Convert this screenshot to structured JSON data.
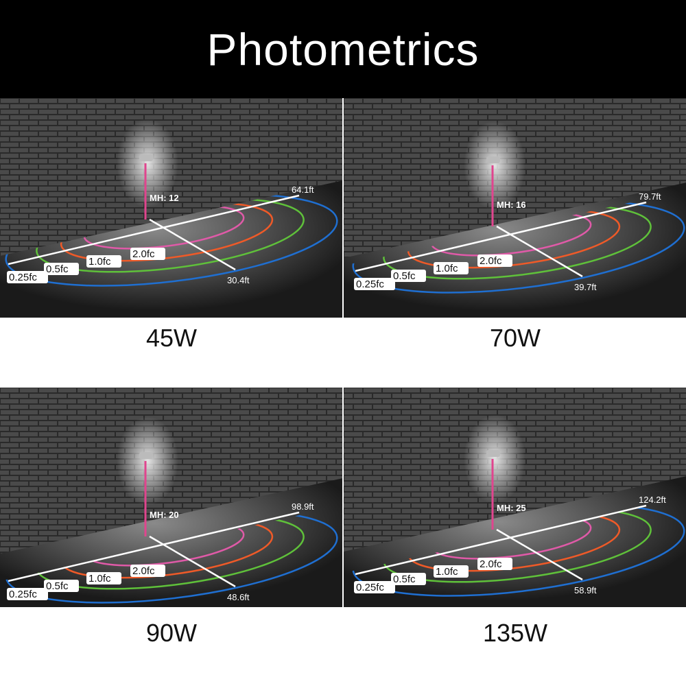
{
  "title": "Photometrics",
  "contour_colors": {
    "0.25fc": "#1f6fd1",
    "0.5fc": "#5fc13a",
    "1.0fc": "#ef5a28",
    "2.0fc": "#e05aa8",
    "mounting_height_line": "#e0458e"
  },
  "panels": [
    {
      "wattage": "45W",
      "mounting_height": "MH: 12",
      "length": "64.1ft",
      "width": "30.4ft",
      "contours": [
        "0.25fc",
        "0.5fc",
        "1.0fc",
        "2.0fc"
      ]
    },
    {
      "wattage": "70W",
      "mounting_height": "MH: 16",
      "length": "79.7ft",
      "width": "39.7ft",
      "contours": [
        "0.25fc",
        "0.5fc",
        "1.0fc",
        "2.0fc"
      ]
    },
    {
      "wattage": "90W",
      "mounting_height": "MH: 20",
      "length": "98.9ft",
      "width": "48.6ft",
      "contours": [
        "0.25fc",
        "0.5fc",
        "1.0fc",
        "2.0fc"
      ]
    },
    {
      "wattage": "135W",
      "mounting_height": "MH: 25",
      "length": "124.2ft",
      "width": "58.9ft",
      "contours": [
        "0.25fc",
        "0.5fc",
        "1.0fc",
        "2.0fc"
      ]
    }
  ]
}
